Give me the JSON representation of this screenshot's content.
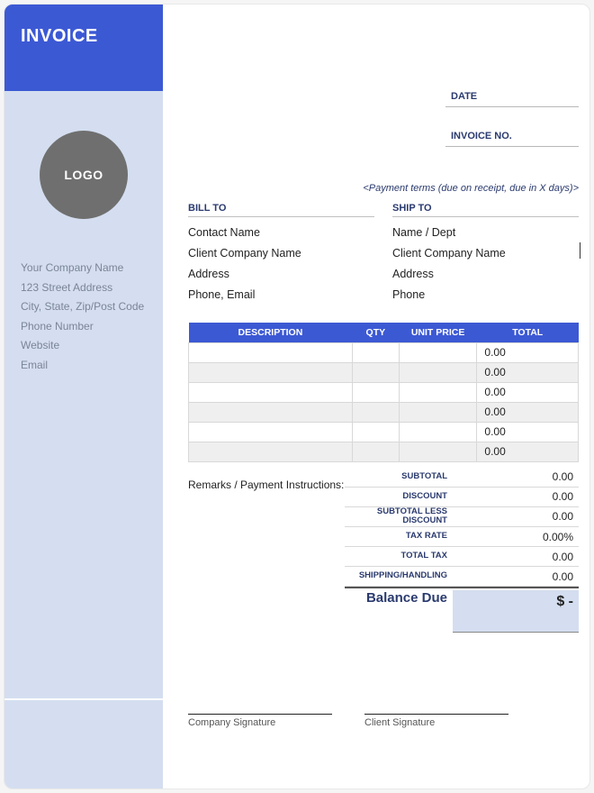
{
  "colors": {
    "accent": "#3c59d4",
    "sidebar_bg": "#d4def0",
    "logo_bg": "#6f6f6f",
    "heading_text": "#2a3a6e",
    "muted_text": "#7a8596",
    "row_alt": "#efefef",
    "border": "#d8d8d8"
  },
  "header": {
    "title": "INVOICE",
    "logo_text": "LOGO"
  },
  "company": {
    "name": "Your Company Name",
    "street": "123 Street Address",
    "city_state_zip": "City, State, Zip/Post Code",
    "phone": "Phone Number",
    "website": "Website",
    "email": "Email"
  },
  "meta": {
    "date_label": "DATE",
    "date_value": "",
    "invoice_no_label": "INVOICE NO.",
    "invoice_no_value": "",
    "payment_terms": "<Payment terms (due on receipt, due in X days)>"
  },
  "bill_to": {
    "heading": "BILL TO",
    "contact": "Contact Name",
    "company": "Client Company Name",
    "address": "Address",
    "phone_email": "Phone, Email"
  },
  "ship_to": {
    "heading": "SHIP TO",
    "name_dept": "Name / Dept",
    "company": "Client Company Name",
    "address": "Address",
    "phone": "Phone"
  },
  "table": {
    "columns": [
      "DESCRIPTION",
      "QTY",
      "UNIT PRICE",
      "TOTAL"
    ],
    "rows": [
      {
        "desc": "",
        "qty": "",
        "price": "",
        "total": "0.00"
      },
      {
        "desc": "",
        "qty": "",
        "price": "",
        "total": "0.00"
      },
      {
        "desc": "",
        "qty": "",
        "price": "",
        "total": "0.00"
      },
      {
        "desc": "",
        "qty": "",
        "price": "",
        "total": "0.00"
      },
      {
        "desc": "",
        "qty": "",
        "price": "",
        "total": "0.00"
      },
      {
        "desc": "",
        "qty": "",
        "price": "",
        "total": "0.00"
      }
    ]
  },
  "remarks_label": "Remarks / Payment Instructions:",
  "totals": {
    "subtotal_label": "SUBTOTAL",
    "subtotal": "0.00",
    "discount_label": "DISCOUNT",
    "discount": "0.00",
    "subtotal_less_label": "SUBTOTAL LESS DISCOUNT",
    "subtotal_less": "0.00",
    "tax_rate_label": "TAX RATE",
    "tax_rate": "0.00%",
    "total_tax_label": "TOTAL TAX",
    "total_tax": "0.00",
    "shipping_label": "SHIPPING/HANDLING",
    "shipping": "0.00",
    "balance_label": "Balance Due",
    "balance": "$ -"
  },
  "signatures": {
    "company": "Company Signature",
    "client": "Client Signature"
  }
}
